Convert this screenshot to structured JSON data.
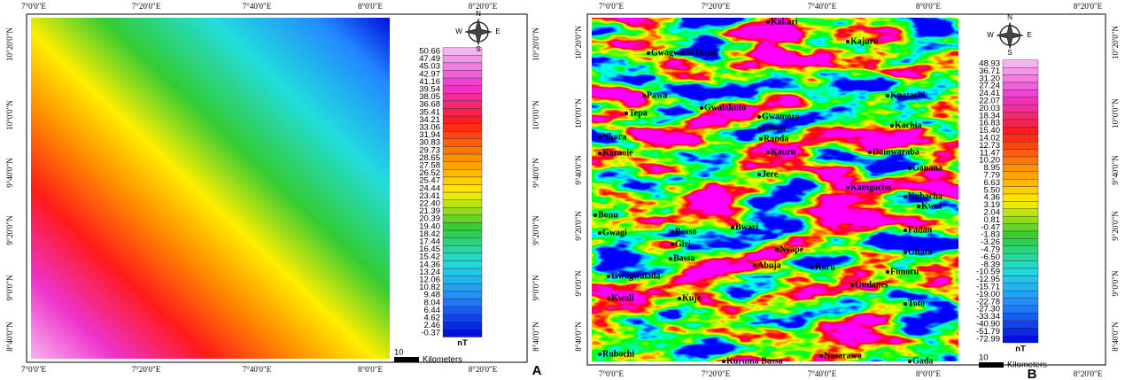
{
  "left_map": {
    "panel_label": "A",
    "x_ticks": [
      "7°0'0\"E",
      "7°20'0\"E",
      "7°40'0\"E",
      "8°0'0\"E",
      "8°20'0\"E"
    ],
    "y_ticks": [
      "10°20'0\"N",
      "10°0'0\"N",
      "9°40'0\"N",
      "9°20'0\"N",
      "9°0'0\"N",
      "8°40'0\"N"
    ],
    "compass": {
      "n": "N",
      "s": "S",
      "w": "W",
      "e": "E"
    },
    "legend": {
      "unit": "nT",
      "values": [
        "50.66",
        "47.49",
        "45.03",
        "42.97",
        "41.16",
        "39.54",
        "38.05",
        "36.68",
        "35.41",
        "34.21",
        "33.06",
        "31.94",
        "30.83",
        "29.73",
        "28.65",
        "27.58",
        "26.52",
        "25.47",
        "24.44",
        "23.41",
        "22.40",
        "21.39",
        "20.39",
        "19.40",
        "18.42",
        "17.44",
        "16.45",
        "15.42",
        "14.36",
        "13.24",
        "12.06",
        "10.82",
        "9.48",
        "8.04",
        "6.44",
        "4.62",
        "2.46",
        "-0.37"
      ]
    },
    "scale_bar": {
      "value": "10",
      "unit": "Kilometers"
    }
  },
  "right_map": {
    "panel_label": "B",
    "x_ticks": [
      "7°0'0\"E",
      "7°20'0\"E",
      "7°40'0\"E",
      "8°0'0\"E",
      "8°20'0\"E"
    ],
    "y_ticks": [
      "10°20'0\"N",
      "10°0'0\"N",
      "9°40'0\"N",
      "9°20'0\"N",
      "9°0'0\"N",
      "8°40'0\"N"
    ],
    "compass": {
      "n": "N",
      "s": "S",
      "w": "W",
      "e": "E"
    },
    "legend": {
      "unit": "nT",
      "values": [
        "48.93",
        "36.71",
        "31.20",
        "27.24",
        "24.41",
        "22.07",
        "20.03",
        "18.34",
        "16.83",
        "15.40",
        "14.02",
        "12.73",
        "11.47",
        "10.20",
        "8.95",
        "7.79",
        "6.63",
        "5.50",
        "4.36",
        "3.19",
        "2.04",
        "0.81",
        "-0.47",
        "-1.83",
        "-3.26",
        "-4.79",
        "-6.50",
        "-8.39",
        "-10.59",
        "-12.95",
        "-15.71",
        "-19.00",
        "-22.78",
        "-27.30",
        "-33.34",
        "-40.90",
        "-51.79",
        "-72.99"
      ]
    },
    "scale_bar": {
      "value": "10",
      "unit": "Kilometers"
    },
    "places": [
      "Kakari",
      "Kajuru",
      "Gwagwada Dutse",
      "Pawa",
      "Kpatachi",
      "Tepa",
      "Gwalakuto",
      "Gwamoro",
      "Sabon",
      "Kachia",
      "Nkora",
      "Randa",
      "Karaoie",
      "Kauru",
      "Damwaraba",
      "Ganana",
      "Jere",
      "Kamgacho",
      "Kubacha",
      "Kwoi",
      "Bonu",
      "Bwari",
      "Bosso",
      "Gwagi",
      "Fadan",
      "Giri",
      "Gitata",
      "Bassa",
      "Nyape",
      "Abuja",
      "Karu",
      "Gwagwalada",
      "Fimoru",
      "Gudanes",
      "Kwali",
      "Kuje",
      "Toto",
      "Rubochi",
      "Kuruma Bassa",
      "Nasarawa",
      "Gada"
    ]
  }
}
